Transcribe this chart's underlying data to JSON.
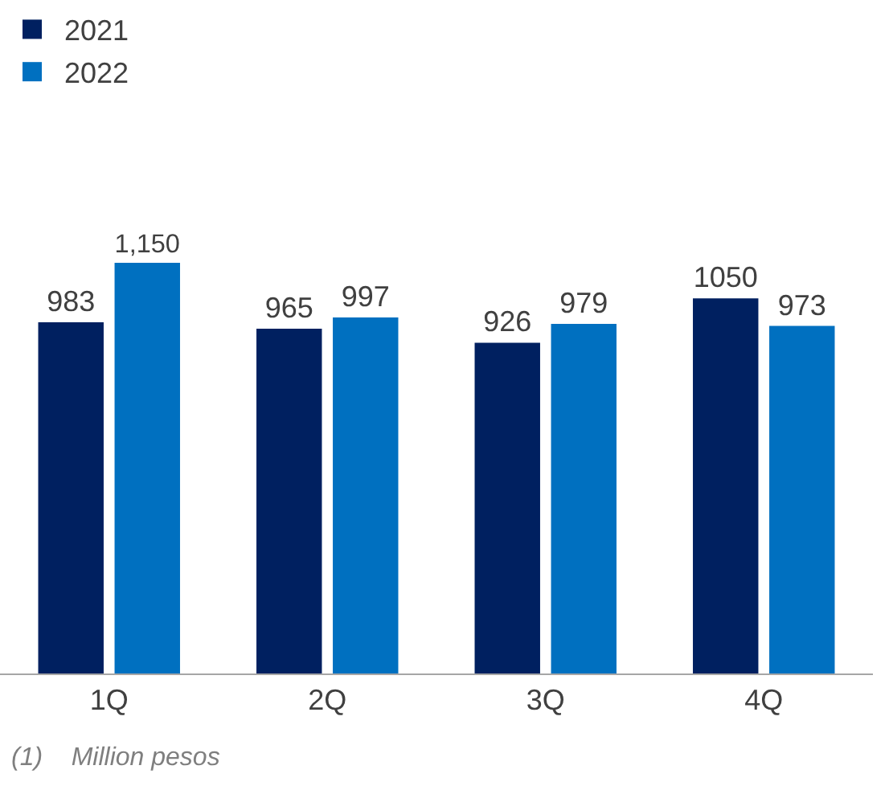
{
  "chart_data": {
    "type": "bar",
    "categories": [
      "1Q",
      "2Q",
      "3Q",
      "4Q"
    ],
    "series": [
      {
        "name": "2021",
        "color": "#002060",
        "values": [
          983,
          965,
          926,
          1050
        ],
        "value_labels": [
          "983",
          "965",
          "926",
          "1050"
        ]
      },
      {
        "name": "2022",
        "color": "#0070c0",
        "values": [
          1150,
          997,
          979,
          973
        ],
        "value_labels": [
          "1,150",
          "997",
          "979",
          "973"
        ]
      }
    ],
    "legend": "top left",
    "annotations": [
      "(1)    Million pesos"
    ]
  }
}
